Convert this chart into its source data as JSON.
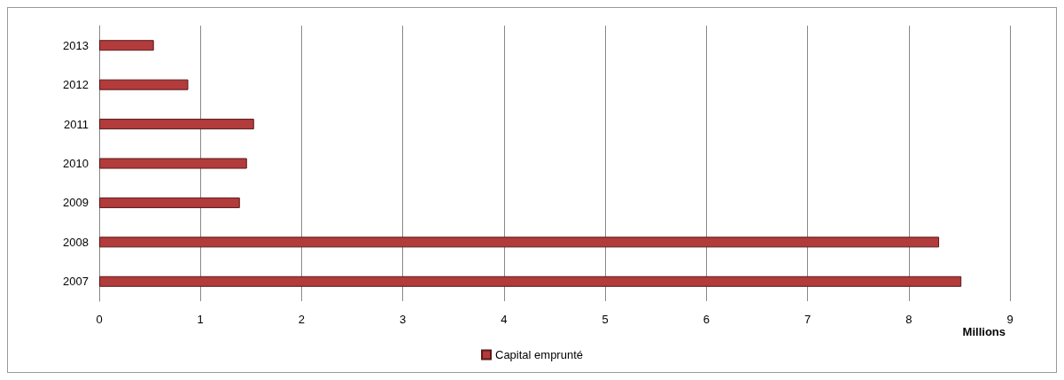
{
  "chart_data": {
    "type": "bar",
    "orientation": "horizontal",
    "categories": [
      "2013",
      "2012",
      "2011",
      "2010",
      "2009",
      "2008",
      "2007"
    ],
    "series": [
      {
        "name": "Capital emprunté",
        "color": "#b23b3b",
        "values": [
          0.54,
          0.88,
          1.53,
          1.46,
          1.39,
          8.3,
          8.52
        ]
      }
    ],
    "xlim": [
      0,
      9
    ],
    "xticks": [
      0,
      1,
      2,
      3,
      4,
      5,
      6,
      7,
      8,
      9
    ],
    "xlabel": "Millions",
    "grid": "x",
    "legend": "bottom"
  }
}
